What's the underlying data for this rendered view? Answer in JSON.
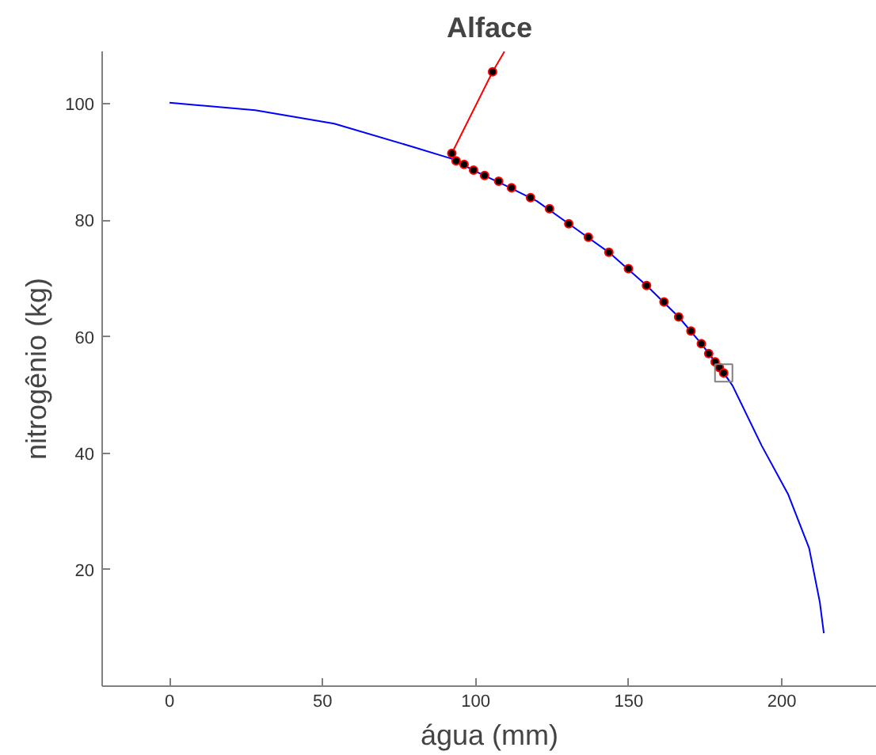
{
  "chart_data": {
    "type": "line",
    "title": "Alface",
    "xlabel": "água (mm)",
    "ylabel": "nitrogênio (kg)",
    "xlim": [
      -22,
      231
    ],
    "ylim": [
      0,
      109
    ],
    "xticks": [
      0,
      50,
      100,
      150,
      200
    ],
    "yticks": [
      20,
      40,
      60,
      80,
      100
    ],
    "grid": false,
    "series": [
      {
        "color": "#0000ff",
        "marker": "none",
        "x": [
          0,
          28,
          53.8,
          79.6,
          92,
          100,
          110,
          120,
          130.4,
          143.5,
          155.8,
          166.3,
          173.7,
          181,
          183.9,
          193.4,
          202,
          208.9,
          212.4,
          213.7
        ],
        "values": [
          100.2,
          98.9,
          96.6,
          92.6,
          90.6,
          88.4,
          85.9,
          83.3,
          79.4,
          74.5,
          68.8,
          63.4,
          58.8,
          53.8,
          51.6,
          41.3,
          33.0,
          23.7,
          14.4,
          9.1
        ]
      },
      {
        "color": "#ff0000",
        "marker": "none",
        "x": [
          109.4,
          105.5,
          92.2
        ],
        "values": [
          109,
          105.5,
          91.5
        ]
      },
      {
        "type": "scatter",
        "color": "#000000",
        "marker": "circle",
        "x": [
          105.5,
          92.2,
          93.6,
          96.2,
          99.3,
          102.9,
          107.5,
          111.7,
          117.9,
          124.1,
          130.4,
          136.8,
          143.5,
          149.9,
          155.8,
          161.5,
          166.3,
          170.3,
          173.7,
          176.1,
          178.2,
          179.6,
          181
        ],
        "values": [
          105.5,
          91.5,
          90.2,
          89.6,
          88.6,
          87.7,
          86.7,
          85.6,
          83.9,
          82.0,
          79.4,
          77.1,
          74.5,
          71.7,
          68.8,
          66.0,
          63.4,
          61.0,
          58.8,
          57.1,
          55.7,
          54.7,
          53.8
        ]
      },
      {
        "type": "scatter",
        "color": "#808080",
        "marker": "square",
        "x": [
          181
        ],
        "values": [
          53.8
        ]
      }
    ]
  }
}
